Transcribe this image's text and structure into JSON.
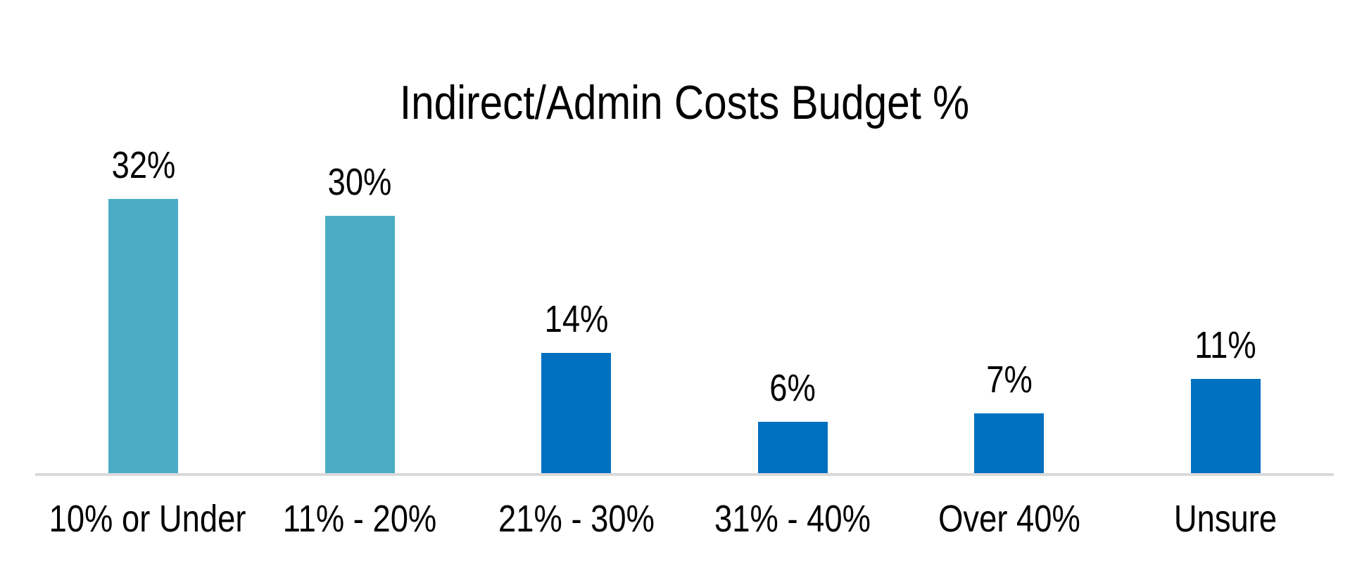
{
  "page": {
    "background_color": "#FFFFFF",
    "text_color": "#000000"
  },
  "chart_data": {
    "type": "bar",
    "title": "Indirect/Admin Costs Budget %",
    "categories": [
      "10% or Under",
      "11% - 20%",
      "21% - 30%",
      "31% - 40%",
      "Over 40%",
      "Unsure"
    ],
    "values": [
      32,
      30,
      14,
      6,
      7,
      11
    ],
    "value_labels": [
      "32%",
      "30%",
      "14%",
      "6%",
      "7%",
      "11%"
    ],
    "series": [
      {
        "name": "Indirect/Admin Costs Budget %",
        "values": [
          32,
          30,
          14,
          6,
          7,
          11
        ]
      }
    ],
    "bar_colors": [
      "#4BACC6",
      "#4BACC6",
      "#0070C0",
      "#0070C0",
      "#0070C0",
      "#0070C0"
    ],
    "xlabel": "",
    "ylabel": "",
    "ylim": [
      0,
      35
    ],
    "grid": false,
    "legend_position": "none",
    "axis_line_color": "#D9D9D9",
    "data_labels_shown": true
  }
}
